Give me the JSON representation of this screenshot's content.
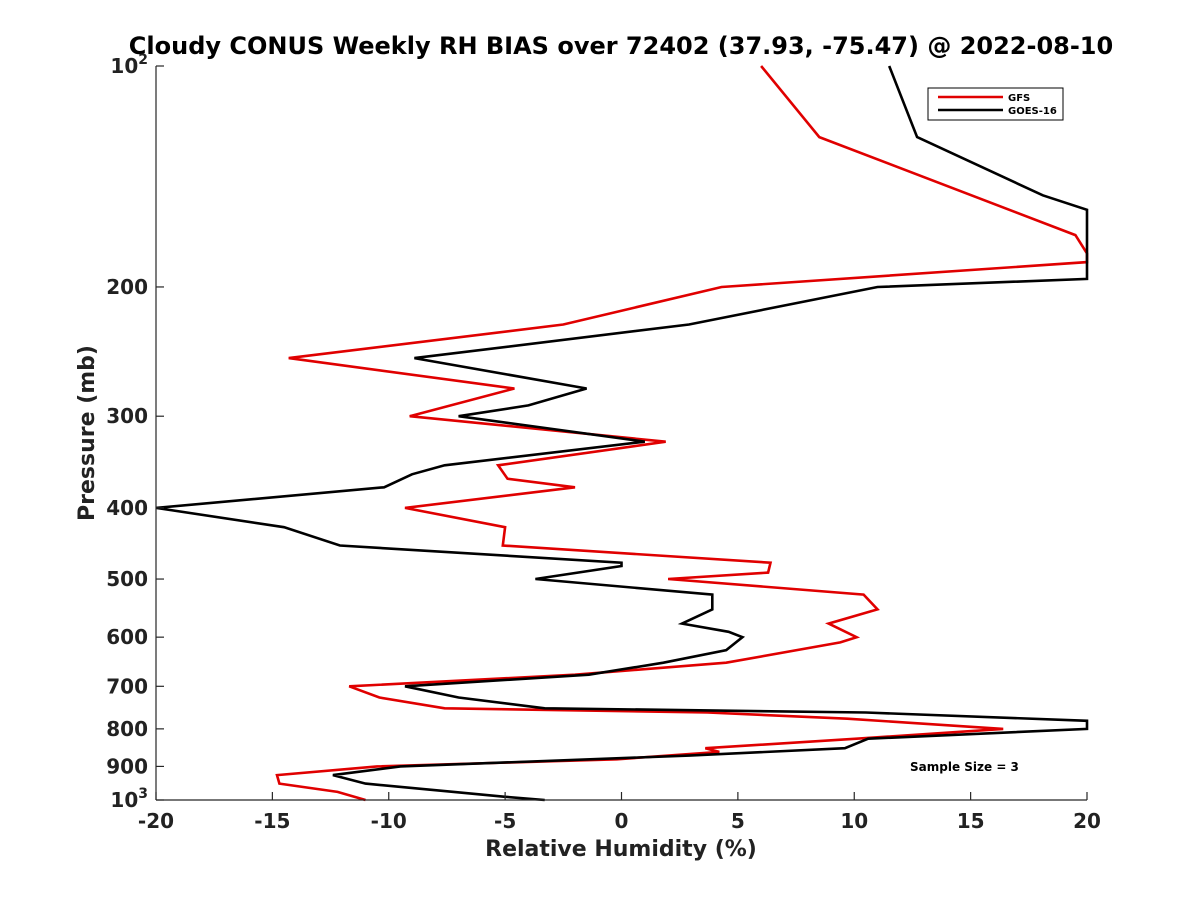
{
  "chart_data": {
    "type": "line",
    "title": "Cloudy CONUS Weekly RH BIAS over 72402 (37.93, -75.47) @ 2022-08-10",
    "xlabel": "Relative Humidity (%)",
    "ylabel": "Pressure (mb)",
    "xlim": [
      -20,
      20
    ],
    "ylim": [
      100,
      1000
    ],
    "yscale": "log",
    "yreversed": true,
    "x_ticks": [
      "-20",
      "-15",
      "-10",
      "-5",
      "0",
      "5",
      "10",
      "15",
      "20"
    ],
    "y_ticks": [
      {
        "value": 100,
        "label": "10",
        "sup": "2"
      },
      {
        "value": 200,
        "label": "200"
      },
      {
        "value": 300,
        "label": "300"
      },
      {
        "value": 400,
        "label": "400"
      },
      {
        "value": 500,
        "label": "500"
      },
      {
        "value": 600,
        "label": "600"
      },
      {
        "value": 700,
        "label": "700"
      },
      {
        "value": 800,
        "label": "800"
      },
      {
        "value": 900,
        "label": "900"
      },
      {
        "value": 1000,
        "label": "10",
        "sup": "3"
      }
    ],
    "grid": false,
    "legend": {
      "position": "top-right"
    },
    "annotation": "Sample Size = 3",
    "series": [
      {
        "name": "GFS",
        "color": "#e00000",
        "points": [
          {
            "x": 6.0,
            "y": 100
          },
          {
            "x": 8.5,
            "y": 125
          },
          {
            "x": 19.5,
            "y": 170
          },
          {
            "x": 20.0,
            "y": 180
          },
          {
            "x": 20.0,
            "y": 185
          },
          {
            "x": 4.3,
            "y": 200
          },
          {
            "x": -2.5,
            "y": 225
          },
          {
            "x": -14.3,
            "y": 250
          },
          {
            "x": -4.6,
            "y": 275
          },
          {
            "x": -9.1,
            "y": 300
          },
          {
            "x": 1.9,
            "y": 325
          },
          {
            "x": -5.3,
            "y": 350
          },
          {
            "x": -4.9,
            "y": 365
          },
          {
            "x": -2.0,
            "y": 375
          },
          {
            "x": -9.3,
            "y": 400
          },
          {
            "x": -5.0,
            "y": 425
          },
          {
            "x": -5.1,
            "y": 450
          },
          {
            "x": 6.4,
            "y": 475
          },
          {
            "x": 6.3,
            "y": 490
          },
          {
            "x": 2.0,
            "y": 500
          },
          {
            "x": 10.4,
            "y": 525
          },
          {
            "x": 11.0,
            "y": 550
          },
          {
            "x": 8.9,
            "y": 575
          },
          {
            "x": 10.1,
            "y": 600
          },
          {
            "x": 9.4,
            "y": 610
          },
          {
            "x": 4.5,
            "y": 650
          },
          {
            "x": -2.0,
            "y": 675
          },
          {
            "x": -11.7,
            "y": 700
          },
          {
            "x": -10.4,
            "y": 725
          },
          {
            "x": -7.6,
            "y": 750
          },
          {
            "x": 3.7,
            "y": 760
          },
          {
            "x": 9.7,
            "y": 775
          },
          {
            "x": 16.4,
            "y": 800
          },
          {
            "x": 10.1,
            "y": 825
          },
          {
            "x": 3.6,
            "y": 850
          },
          {
            "x": 4.2,
            "y": 860
          },
          {
            "x": -0.2,
            "y": 880
          },
          {
            "x": -10.5,
            "y": 900
          },
          {
            "x": -14.8,
            "y": 925
          },
          {
            "x": -14.7,
            "y": 950
          },
          {
            "x": -12.2,
            "y": 975
          },
          {
            "x": -11.0,
            "y": 1000
          }
        ]
      },
      {
        "name": "GOES-16",
        "color": "#000000",
        "points": [
          {
            "x": 11.5,
            "y": 100
          },
          {
            "x": 12.7,
            "y": 125
          },
          {
            "x": 18.1,
            "y": 150
          },
          {
            "x": 20.0,
            "y": 157
          },
          {
            "x": 20.0,
            "y": 195
          },
          {
            "x": 11.0,
            "y": 200
          },
          {
            "x": 2.9,
            "y": 225
          },
          {
            "x": -8.9,
            "y": 250
          },
          {
            "x": -1.5,
            "y": 275
          },
          {
            "x": -4.0,
            "y": 290
          },
          {
            "x": -7.0,
            "y": 300
          },
          {
            "x": 1.0,
            "y": 325
          },
          {
            "x": -7.6,
            "y": 350
          },
          {
            "x": -9.0,
            "y": 360
          },
          {
            "x": -10.2,
            "y": 375
          },
          {
            "x": -20.0,
            "y": 400
          },
          {
            "x": -14.5,
            "y": 425
          },
          {
            "x": -12.1,
            "y": 450
          },
          {
            "x": 0.0,
            "y": 475
          },
          {
            "x": 0.0,
            "y": 480
          },
          {
            "x": -3.7,
            "y": 500
          },
          {
            "x": 3.9,
            "y": 525
          },
          {
            "x": 3.9,
            "y": 550
          },
          {
            "x": 2.6,
            "y": 575
          },
          {
            "x": 4.6,
            "y": 590
          },
          {
            "x": 5.2,
            "y": 600
          },
          {
            "x": 4.5,
            "y": 625
          },
          {
            "x": 1.8,
            "y": 650
          },
          {
            "x": -1.4,
            "y": 675
          },
          {
            "x": -9.3,
            "y": 700
          },
          {
            "x": -7.0,
            "y": 725
          },
          {
            "x": -3.3,
            "y": 750
          },
          {
            "x": 10.5,
            "y": 760
          },
          {
            "x": 20.0,
            "y": 780
          },
          {
            "x": 20.0,
            "y": 800
          },
          {
            "x": 10.6,
            "y": 825
          },
          {
            "x": 9.6,
            "y": 850
          },
          {
            "x": 2.9,
            "y": 870
          },
          {
            "x": -9.5,
            "y": 900
          },
          {
            "x": -12.4,
            "y": 925
          },
          {
            "x": -11.0,
            "y": 950
          },
          {
            "x": -7.2,
            "y": 975
          },
          {
            "x": -5.0,
            "y": 990
          },
          {
            "x": -3.3,
            "y": 1000
          }
        ]
      }
    ]
  }
}
